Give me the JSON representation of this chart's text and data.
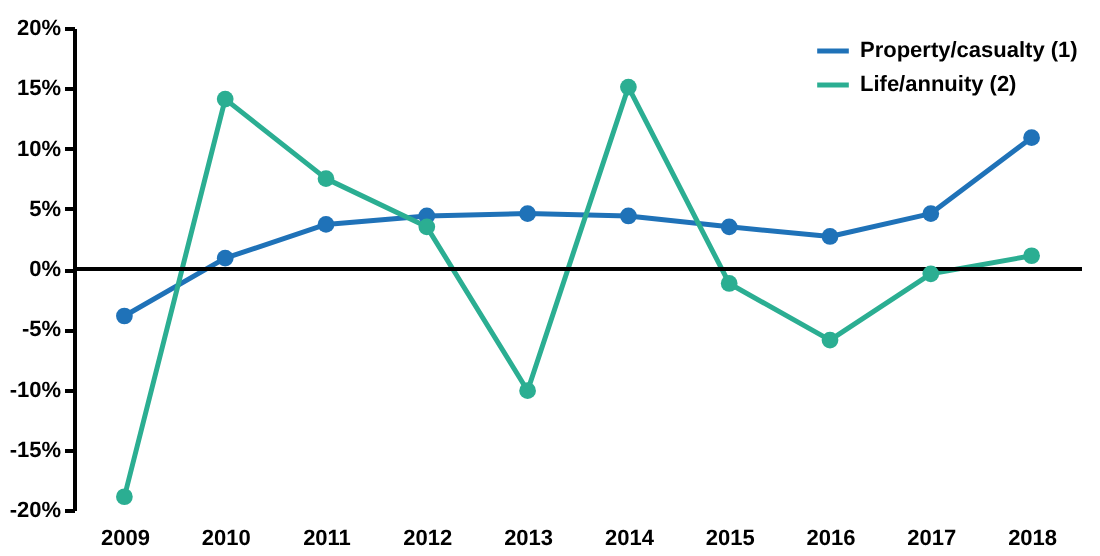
{
  "chart_data": {
    "type": "line",
    "categories": [
      "2009",
      "2010",
      "2011",
      "2012",
      "2013",
      "2014",
      "2015",
      "2016",
      "2017",
      "2018"
    ],
    "series": [
      {
        "name": "Property/casualty (1)",
        "color": "#1f72b8",
        "values": [
          -3.9,
          0.9,
          3.7,
          4.4,
          4.6,
          4.4,
          3.5,
          2.7,
          4.6,
          10.9
        ]
      },
      {
        "name": "Life/annuity (2)",
        "color": "#2bae92",
        "values": [
          -18.9,
          14.1,
          7.5,
          3.5,
          -10.1,
          15.1,
          -1.2,
          -5.9,
          -0.4,
          1.1
        ]
      }
    ],
    "ylim": [
      -20,
      20
    ],
    "yticks": [
      {
        "value": -20,
        "label": "-20%"
      },
      {
        "value": -15,
        "label": "-15%"
      },
      {
        "value": -10,
        "label": "-10%"
      },
      {
        "value": -5,
        "label": "-5%"
      },
      {
        "value": 0,
        "label": "0%"
      },
      {
        "value": 5,
        "label": "5%"
      },
      {
        "value": 10,
        "label": "10%"
      },
      {
        "value": 15,
        "label": "15%"
      },
      {
        "value": 20,
        "label": "20%"
      }
    ],
    "ref_lines": [
      {
        "axis": "y",
        "value": 0,
        "color": "#000000"
      }
    ],
    "grid": false,
    "legend": "top right",
    "marker": "circle",
    "line_style": "solid"
  }
}
